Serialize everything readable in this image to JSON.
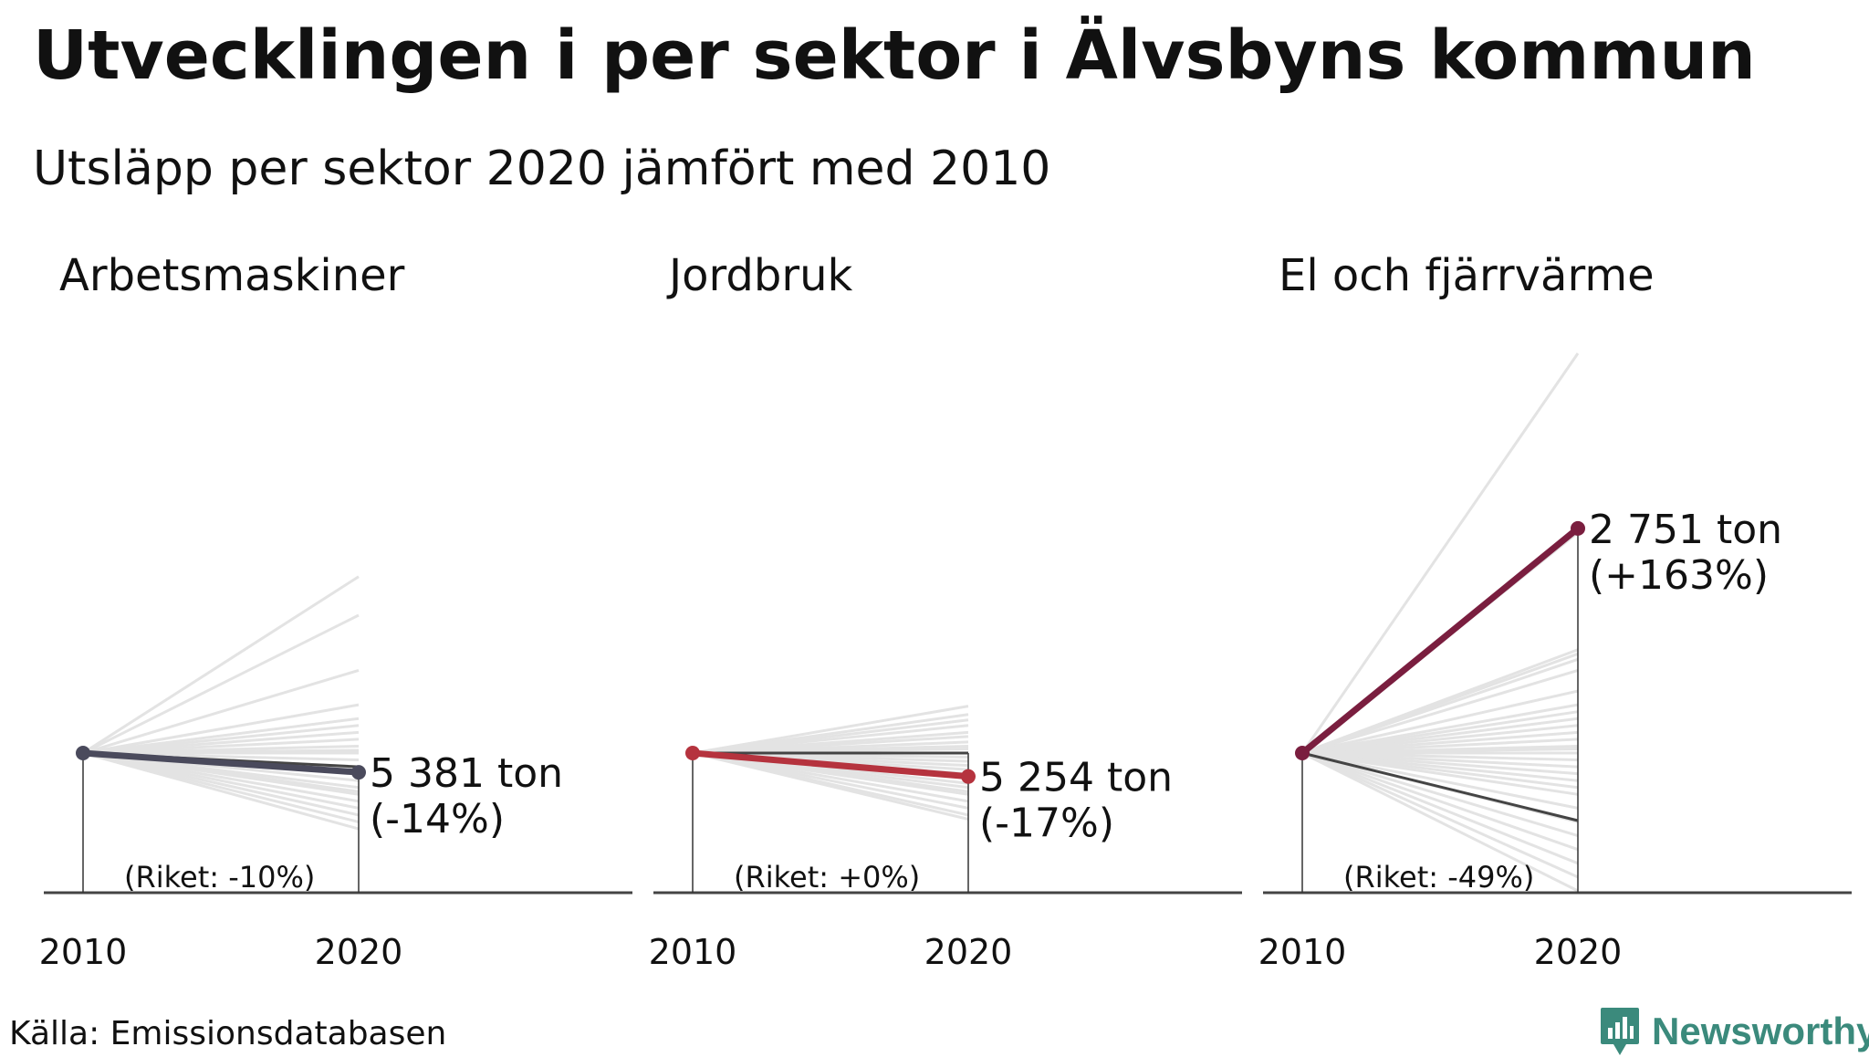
{
  "header": {
    "title": "Utvecklingen i per sektor i Älvsbyns kommun",
    "subtitle": "Utsläpp per sektor 2020 jämfört med 2010"
  },
  "footer": {
    "source": "Källa: Emissionsdatabasen",
    "brand": "Newsworthy",
    "brand_color": "#3b8a7c"
  },
  "colors": {
    "background_lines": "#e3e3e3",
    "riket_line": "#444444",
    "axis": "#444444"
  },
  "chart_data": [
    {
      "type": "line",
      "title": "Arbetsmaskiner",
      "x": [
        "2010",
        "2020"
      ],
      "series": [
        {
          "role": "kommun",
          "color": "#4a4a5c",
          "values": [
            100,
            86
          ],
          "value_label": "5 381 ton",
          "change_label": "(-14%)"
        },
        {
          "role": "riket",
          "values": [
            100,
            90
          ],
          "label": "(Riket: -10%)"
        }
      ],
      "other_municipalities_change_pct": [
        128,
        100,
        60,
        35,
        25,
        20,
        15,
        10,
        5,
        2,
        0,
        -5,
        -10,
        -12,
        -15,
        -20,
        -25,
        -28,
        -30,
        -35,
        -40,
        -45,
        -50,
        -55
      ],
      "ylim": [
        -100,
        220
      ]
    },
    {
      "type": "line",
      "title": "Jordbruk",
      "x": [
        "2010",
        "2020"
      ],
      "series": [
        {
          "role": "kommun",
          "color": "#b5333e",
          "values": [
            100,
            83
          ],
          "value_label": "5 254 ton",
          "change_label": "(-17%)"
        },
        {
          "role": "riket",
          "values": [
            100,
            100
          ],
          "label": "(Riket: +0%)"
        }
      ],
      "other_municipalities_change_pct": [
        34,
        28,
        24,
        20,
        15,
        12,
        8,
        5,
        3,
        0,
        -3,
        -6,
        -9,
        -12,
        -15,
        -18,
        -22,
        -25,
        -28,
        -30,
        -35,
        -40,
        -45,
        -48
      ],
      "ylim": [
        -100,
        220
      ]
    },
    {
      "type": "line",
      "title": "El och fjärrvärme",
      "x": [
        "2010",
        "2020"
      ],
      "series": [
        {
          "role": "kommun",
          "color": "#7a1e3f",
          "values": [
            100,
            263
          ],
          "value_label": "2 751 ton",
          "change_label": "(+163%)"
        },
        {
          "role": "riket",
          "values": [
            100,
            51
          ],
          "label": "(Riket: -49%)"
        }
      ],
      "other_municipalities_change_pct": [
        290,
        160,
        75,
        72,
        68,
        60,
        45,
        35,
        30,
        25,
        20,
        15,
        10,
        5,
        3,
        0,
        -5,
        -10,
        -15,
        -20,
        -25,
        -30,
        -40,
        -50,
        -60,
        -70,
        -80,
        -90,
        -100
      ],
      "ylim": [
        -100,
        220
      ]
    }
  ]
}
